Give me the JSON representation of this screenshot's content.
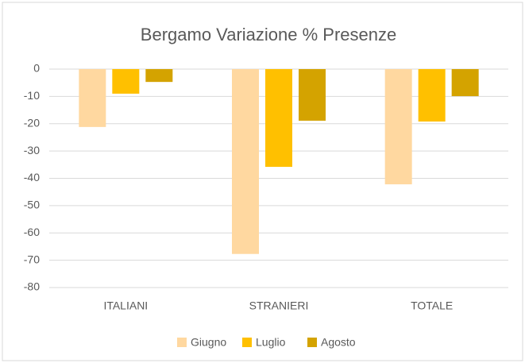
{
  "chart_data": {
    "type": "bar",
    "title": "Bergamo Variazione % Presenze",
    "categories": [
      "ITALIANI",
      "STRANIERI",
      "TOTALE"
    ],
    "series": [
      {
        "name": "Giugno",
        "color": "#ffd8a0",
        "values": [
          -21.2,
          -67.7,
          -42.2
        ]
      },
      {
        "name": "Luglio",
        "color": "#ffc000",
        "values": [
          -9,
          -35.8,
          -19.2
        ]
      },
      {
        "name": "Agosto",
        "color": "#d4a300",
        "values": [
          -4.7,
          -18.9,
          -9.9
        ]
      }
    ],
    "ylim": [
      -80,
      0
    ],
    "yticks": [
      0,
      -10,
      -20,
      -30,
      -40,
      -50,
      -60,
      -70,
      -80
    ],
    "grid": true,
    "legend": "bottom"
  }
}
